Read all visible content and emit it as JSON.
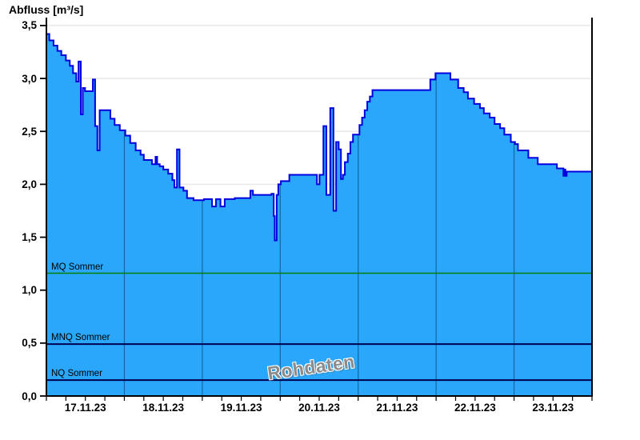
{
  "title": "Abfluss [m³/s]",
  "watermark": "Rohdaten",
  "colors": {
    "background": "#FFFFFF",
    "area_fill": "#2AA7FA",
    "area_line": "#0000DD",
    "grid_horizontal": "#E7E7E7",
    "grid_vertical_on_fill": "rgba(0,40,70,0.5)",
    "axis": "#000000",
    "mq_line": "#007F00",
    "mnq_line": "#000050",
    "nq_line": "#000050",
    "text": "#000000",
    "watermark_text": "#8C8C8C"
  },
  "chart_data": {
    "type": "area",
    "title": "Abfluss [m³/s]",
    "ylabel": "Abfluss [m³/s]",
    "interpolation": "step-hold",
    "x_unit": "hours since 17.11.23 00:00",
    "x_range": [
      0,
      168
    ],
    "ylim": [
      0,
      3.575
    ],
    "grid": {
      "horizontal_step": 0.5,
      "vertical_day_hours": [
        24,
        48,
        72,
        96,
        120,
        144
      ],
      "minor_tick_step_hours": 6
    },
    "y_ticks": [
      {
        "label": "3,5",
        "value": 3.5
      },
      {
        "label": "3,0",
        "value": 3.0
      },
      {
        "label": "2,5",
        "value": 2.5
      },
      {
        "label": "2,0",
        "value": 2.0
      },
      {
        "label": "1,5",
        "value": 1.5
      },
      {
        "label": "1,0",
        "value": 1.0
      },
      {
        "label": "0,5",
        "value": 0.5
      },
      {
        "label": "0,0",
        "value": 0.0
      }
    ],
    "x_tick_labels": [
      {
        "label": "17.11.23",
        "hour": 12
      },
      {
        "label": "18.11.23",
        "hour": 36
      },
      {
        "label": "19.11.23",
        "hour": 60
      },
      {
        "label": "20.11.23",
        "hour": 84
      },
      {
        "label": "21.11.23",
        "hour": 108
      },
      {
        "label": "22.11.23",
        "hour": 132
      },
      {
        "label": "23.11.23",
        "hour": 156
      }
    ],
    "reference_lines": [
      {
        "label": "MQ Sommer",
        "value": 1.16,
        "color": "#007F00",
        "width": 1.5
      },
      {
        "label": "MNQ Sommer",
        "value": 0.49,
        "color": "#000050",
        "width": 2
      },
      {
        "label": "NQ Sommer",
        "value": 0.15,
        "color": "#000050",
        "width": 2
      }
    ],
    "series": [
      {
        "name": "Rohdaten",
        "points": [
          [
            0,
            3.42
          ],
          [
            0.9,
            3.36
          ],
          [
            2.2,
            3.31
          ],
          [
            3.4,
            3.26
          ],
          [
            4.6,
            3.22
          ],
          [
            6,
            3.17
          ],
          [
            7.2,
            3.12
          ],
          [
            8.2,
            3.05
          ],
          [
            9.2,
            2.97
          ],
          [
            9.9,
            3.16
          ],
          [
            10.6,
            2.66
          ],
          [
            11.2,
            2.91
          ],
          [
            11.9,
            2.88
          ],
          [
            14.3,
            2.99
          ],
          [
            15,
            2.55
          ],
          [
            15.7,
            2.32
          ],
          [
            16.4,
            2.7
          ],
          [
            19.7,
            2.62
          ],
          [
            21,
            2.56
          ],
          [
            22.6,
            2.51
          ],
          [
            24.3,
            2.46
          ],
          [
            25.8,
            2.39
          ],
          [
            27.5,
            2.32
          ],
          [
            29,
            2.28
          ],
          [
            30,
            2.23
          ],
          [
            32.5,
            2.19
          ],
          [
            33.6,
            2.26
          ],
          [
            34.1,
            2.19
          ],
          [
            34.9,
            2.17
          ],
          [
            36,
            2.14
          ],
          [
            37.5,
            2.1
          ],
          [
            38.8,
            2.04
          ],
          [
            39.4,
            1.97
          ],
          [
            40.2,
            2.33
          ],
          [
            41,
            1.97
          ],
          [
            42.2,
            1.94
          ],
          [
            43.3,
            1.87
          ],
          [
            45.3,
            1.85
          ],
          [
            48.5,
            1.86
          ],
          [
            51,
            1.79
          ],
          [
            52.2,
            1.86
          ],
          [
            53.6,
            1.79
          ],
          [
            54.9,
            1.86
          ],
          [
            58,
            1.87
          ],
          [
            62.8,
            1.94
          ],
          [
            63.6,
            1.9
          ],
          [
            69.3,
            1.91
          ],
          [
            70,
            1.7
          ],
          [
            70.3,
            1.47
          ],
          [
            70.9,
            1.9
          ],
          [
            71.4,
            2.0
          ],
          [
            72.2,
            2.03
          ],
          [
            74.8,
            2.09
          ],
          [
            83.3,
            2.0
          ],
          [
            84.1,
            2.09
          ],
          [
            85.3,
            2.55
          ],
          [
            86.2,
            1.9
          ],
          [
            87.4,
            2.72
          ],
          [
            88.4,
            1.75
          ],
          [
            89.2,
            2.4
          ],
          [
            90,
            2.33
          ],
          [
            90.7,
            2.05
          ],
          [
            91.3,
            2.09
          ],
          [
            91.9,
            2.21
          ],
          [
            92.8,
            2.29
          ],
          [
            93.6,
            2.4
          ],
          [
            94.4,
            2.47
          ],
          [
            96.4,
            2.56
          ],
          [
            97.2,
            2.63
          ],
          [
            98,
            2.7
          ],
          [
            98.8,
            2.78
          ],
          [
            99.6,
            2.83
          ],
          [
            100.4,
            2.89
          ],
          [
            118.2,
            2.99
          ],
          [
            119.8,
            3.05
          ],
          [
            124.4,
            2.99
          ],
          [
            126.8,
            2.91
          ],
          [
            128.5,
            2.87
          ],
          [
            129.8,
            2.81
          ],
          [
            131.7,
            2.76
          ],
          [
            133.5,
            2.72
          ],
          [
            134.7,
            2.67
          ],
          [
            136.5,
            2.63
          ],
          [
            138,
            2.57
          ],
          [
            139.7,
            2.53
          ],
          [
            141,
            2.47
          ],
          [
            143,
            2.4
          ],
          [
            144.3,
            2.38
          ],
          [
            145.2,
            2.32
          ],
          [
            148.4,
            2.25
          ],
          [
            151.3,
            2.19
          ],
          [
            157.2,
            2.15
          ],
          [
            159.2,
            2.08
          ],
          [
            159.5,
            2.14
          ],
          [
            159.8,
            2.08
          ],
          [
            160.2,
            2.12
          ]
        ]
      }
    ]
  }
}
